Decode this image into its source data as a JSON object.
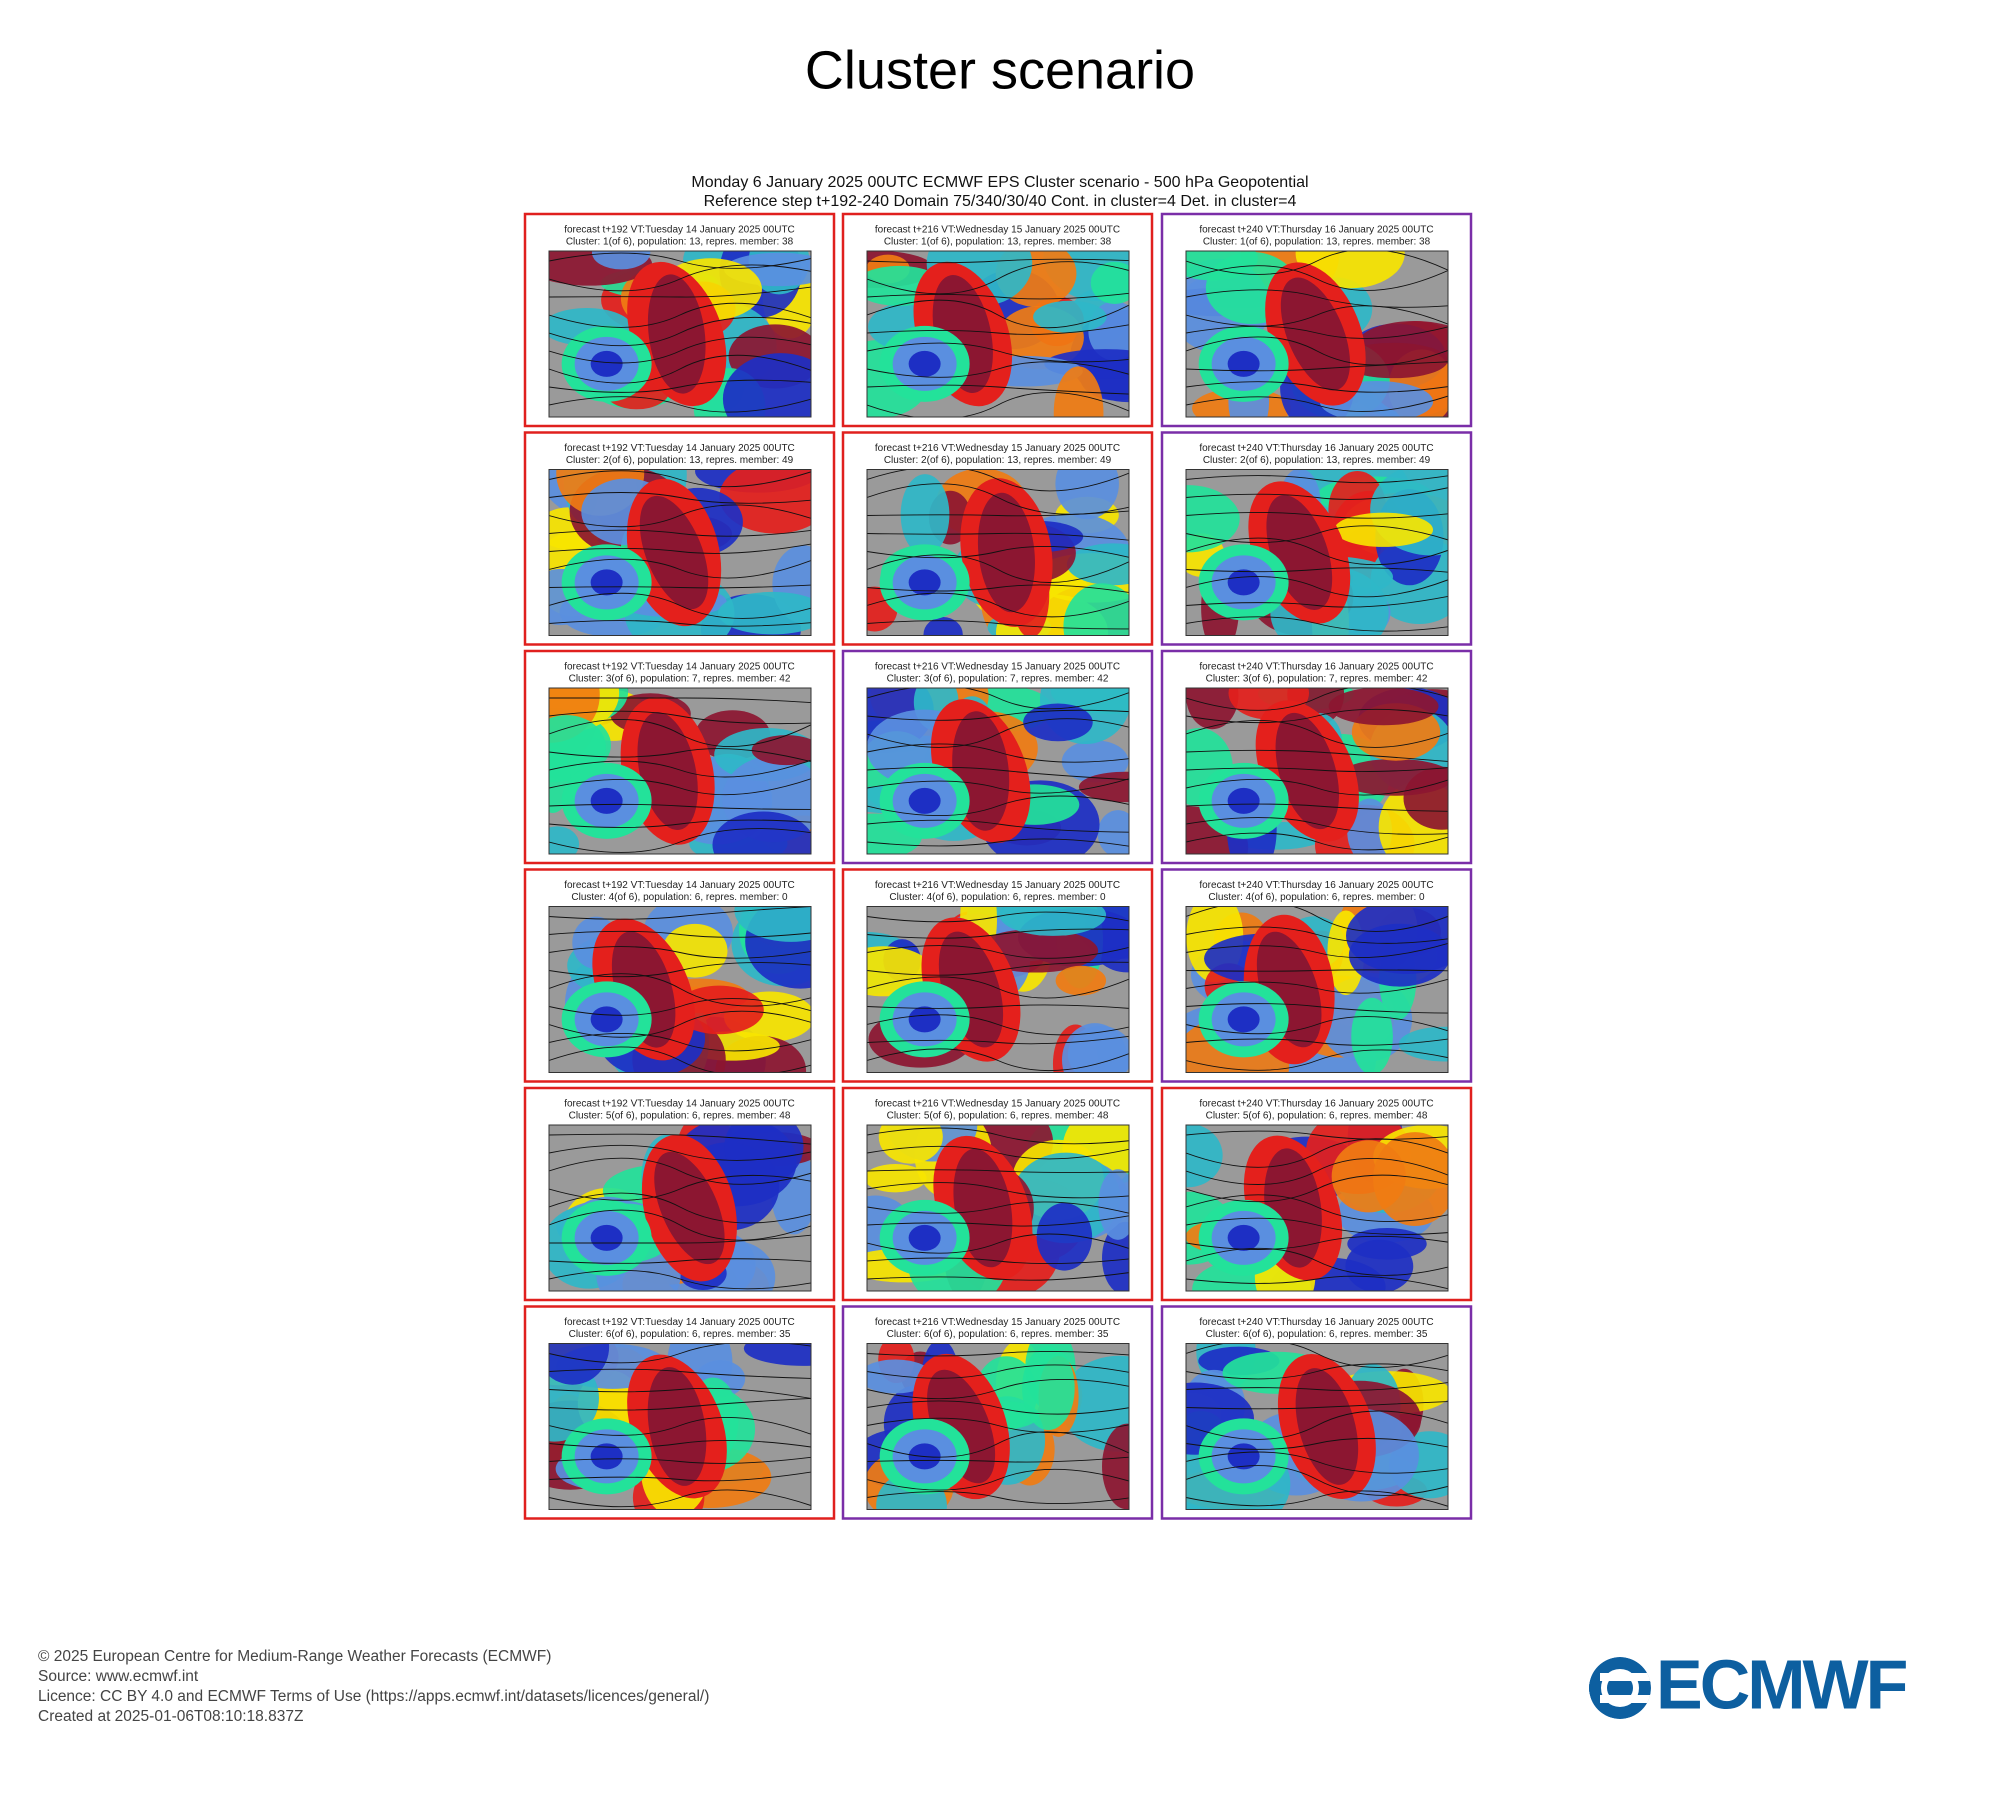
{
  "header": {
    "title": "Cluster scenario"
  },
  "figure": {
    "title_lines": [
      "Monday 6 January 2025 00UTC ECMWF EPS Cluster scenario - 500 hPa Geopotential",
      "Reference step t+192-240 Domain 75/340/30/40 Cont. in cluster=4 Det. in cluster=4"
    ],
    "panels": [
      [
        {
          "line1": "forecast t+192 VT:Tuesday 14 January 2025 00UTC",
          "line2": "Cluster: 1(of 6), population: 13, repres. member: 38",
          "frame": "#e0201e"
        },
        {
          "line1": "forecast t+216 VT:Wednesday 15 January 2025 00UTC",
          "line2": "Cluster: 1(of 6), population: 13, repres. member: 38",
          "frame": "#e0201e"
        },
        {
          "line1": "forecast t+240 VT:Thursday 16 January 2025 00UTC",
          "line2": "Cluster: 1(of 6), population: 13, repres. member: 38",
          "frame": "#7a2ea8"
        }
      ],
      [
        {
          "line1": "forecast t+192 VT:Tuesday 14 January 2025 00UTC",
          "line2": "Cluster: 2(of 6), population: 13, repres. member: 49",
          "frame": "#e0201e"
        },
        {
          "line1": "forecast t+216 VT:Wednesday 15 January 2025 00UTC",
          "line2": "Cluster: 2(of 6), population: 13, repres. member: 49",
          "frame": "#e0201e"
        },
        {
          "line1": "forecast t+240 VT:Thursday 16 January 2025 00UTC",
          "line2": "Cluster: 2(of 6), population: 13, repres. member: 49",
          "frame": "#7a2ea8"
        }
      ],
      [
        {
          "line1": "forecast t+192 VT:Tuesday 14 January 2025 00UTC",
          "line2": "Cluster: 3(of 6), population: 7, repres. member: 42",
          "frame": "#e0201e"
        },
        {
          "line1": "forecast t+216 VT:Wednesday 15 January 2025 00UTC",
          "line2": "Cluster: 3(of 6), population: 7, repres. member: 42",
          "frame": "#7a2ea8"
        },
        {
          "line1": "forecast t+240 VT:Thursday 16 January 2025 00UTC",
          "line2": "Cluster: 3(of 6), population: 7, repres. member: 42",
          "frame": "#7a2ea8"
        }
      ],
      [
        {
          "line1": "forecast t+192 VT:Tuesday 14 January 2025 00UTC",
          "line2": "Cluster: 4(of 6), population: 6, repres. member: 0",
          "frame": "#e0201e"
        },
        {
          "line1": "forecast t+216 VT:Wednesday 15 January 2025 00UTC",
          "line2": "Cluster: 4(of 6), population: 6, repres. member: 0",
          "frame": "#e0201e"
        },
        {
          "line1": "forecast t+240 VT:Thursday 16 January 2025 00UTC",
          "line2": "Cluster: 4(of 6), population: 6, repres. member: 0",
          "frame": "#7a2ea8"
        }
      ],
      [
        {
          "line1": "forecast t+192 VT:Tuesday 14 January 2025 00UTC",
          "line2": "Cluster: 5(of 6), population: 6, repres. member: 48",
          "frame": "#e0201e"
        },
        {
          "line1": "forecast t+216 VT:Wednesday 15 January 2025 00UTC",
          "line2": "Cluster: 5(of 6), population: 6, repres. member: 48",
          "frame": "#e0201e"
        },
        {
          "line1": "forecast t+240 VT:Thursday 16 January 2025 00UTC",
          "line2": "Cluster: 5(of 6), population: 6, repres. member: 48",
          "frame": "#e0201e"
        }
      ],
      [
        {
          "line1": "forecast t+192 VT:Tuesday 14 January 2025 00UTC",
          "line2": "Cluster: 6(of 6), population: 6, repres. member: 35",
          "frame": "#e0201e"
        },
        {
          "line1": "forecast t+216 VT:Wednesday 15 January 2025 00UTC",
          "line2": "Cluster: 6(of 6), population: 6, repres. member: 35",
          "frame": "#7a2ea8"
        },
        {
          "line1": "forecast t+240 VT:Thursday 16 January 2025 00UTC",
          "line2": "Cluster: 6(of 6), population: 6, repres. member: 35",
          "frame": "#7a2ea8"
        }
      ]
    ]
  },
  "footer": {
    "lines": [
      "© 2025 European Centre for Medium-Range Weather Forecasts (ECMWF)",
      "Source: www.ecmwf.int",
      "Licence: CC BY 4.0 and ECMWF Terms of Use (https://apps.ecmwf.int/datasets/licences/general/)",
      "Created at 2025-01-06T08:10:18.837Z"
    ],
    "logo": "ECMWF"
  }
}
